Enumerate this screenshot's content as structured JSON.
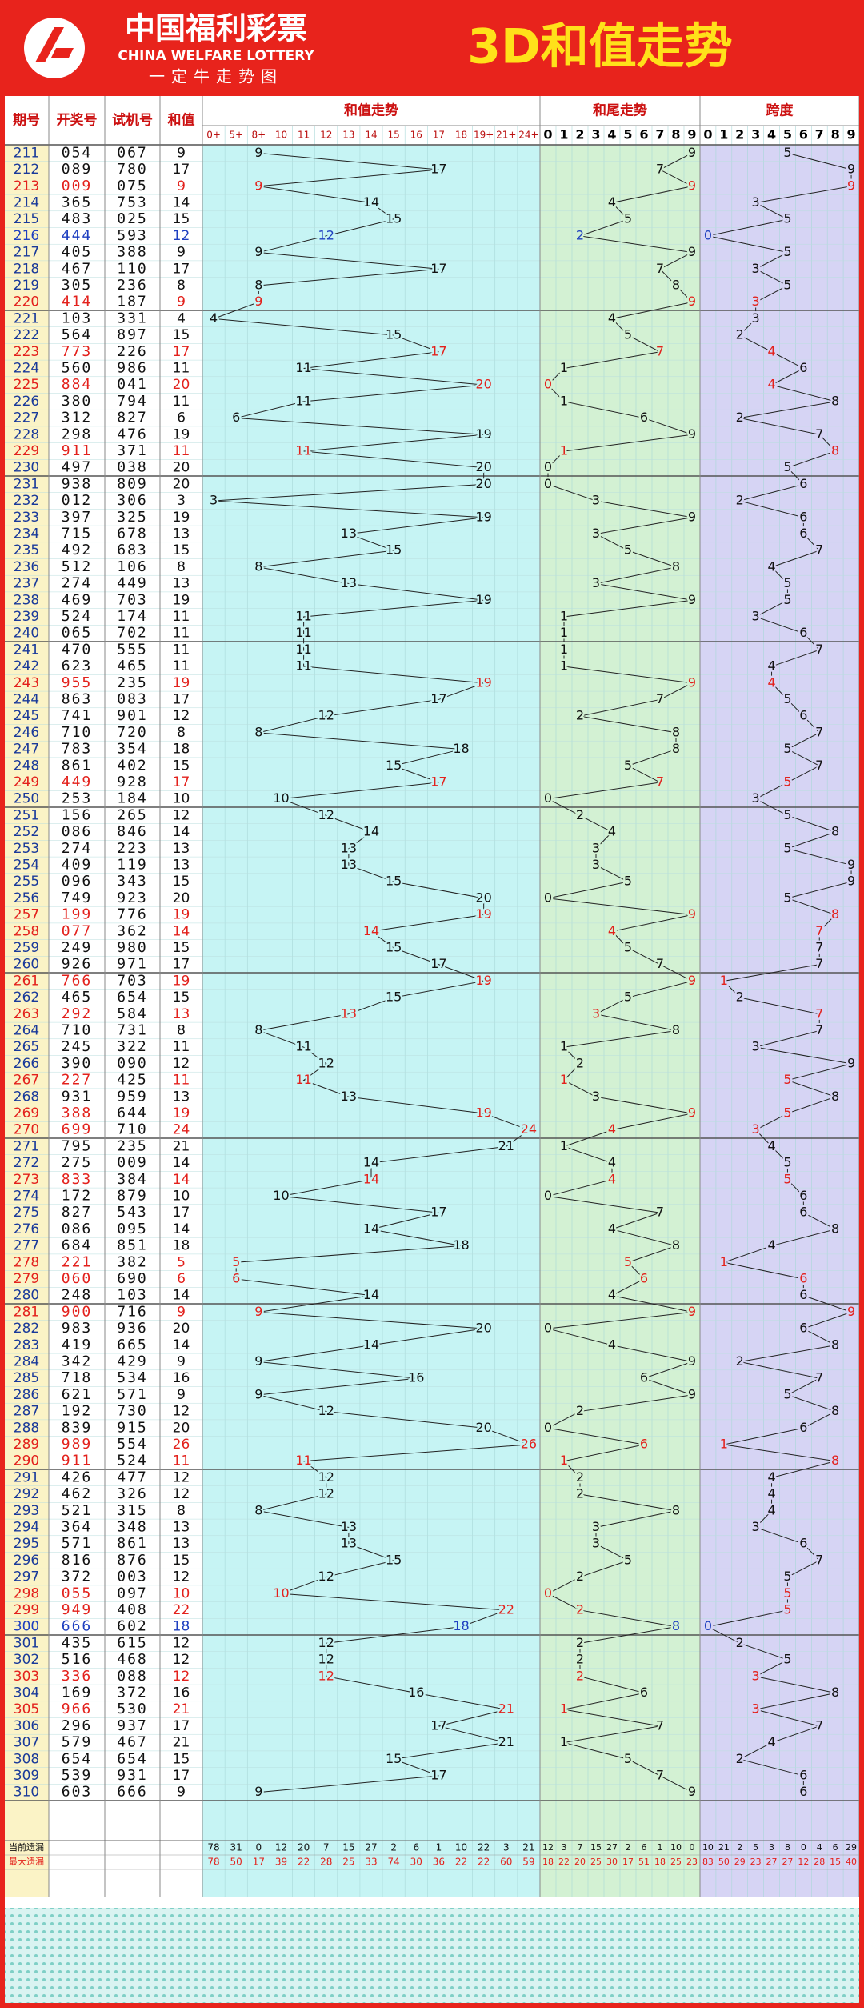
{
  "header": {
    "logo_cn": "中国福利彩票",
    "logo_en": "CHINA WELFARE LOTTERY",
    "slogan": "一定牛走势图",
    "title": "3D和值走势"
  },
  "columns": {
    "issue": "期号",
    "draw": "开奖号",
    "test": "试机号",
    "sum": "和值",
    "sum_trend": "和值走势",
    "tail_trend": "和尾走势",
    "span_trend": "跨度"
  },
  "sum_bins": [
    "0+",
    "5+",
    "8+",
    "10",
    "11",
    "12",
    "13",
    "14",
    "15",
    "16",
    "17",
    "18",
    "19+",
    "21+",
    "24+"
  ],
  "tail_bins": [
    0,
    1,
    2,
    3,
    4,
    5,
    6,
    7,
    8,
    9
  ],
  "span_bins": [
    0,
    1,
    2,
    3,
    4,
    5,
    6,
    7,
    8,
    9
  ],
  "rows": [
    {
      "issue": 211,
      "draw": "054",
      "test": "067",
      "sum": 9,
      "tail": 9,
      "span": 5
    },
    {
      "issue": 212,
      "draw": "089",
      "test": "780",
      "sum": 17,
      "tail": 7,
      "span": 9
    },
    {
      "issue": 213,
      "draw": "009",
      "test": "075",
      "sum": 9,
      "tail": 9,
      "span": 9,
      "color": "#e3211c"
    },
    {
      "issue": 214,
      "draw": "365",
      "test": "753",
      "sum": 14,
      "tail": 4,
      "span": 3
    },
    {
      "issue": 215,
      "draw": "483",
      "test": "025",
      "sum": 15,
      "tail": 5,
      "span": 5
    },
    {
      "issue": 216,
      "draw": "444",
      "test": "593",
      "sum": 12,
      "tail": 2,
      "span": 0,
      "color": "#1e3fc0"
    },
    {
      "issue": 217,
      "draw": "405",
      "test": "388",
      "sum": 9,
      "tail": 9,
      "span": 5
    },
    {
      "issue": 218,
      "draw": "467",
      "test": "110",
      "sum": 17,
      "tail": 7,
      "span": 3
    },
    {
      "issue": 219,
      "draw": "305",
      "test": "236",
      "sum": 8,
      "tail": 8,
      "span": 5
    },
    {
      "issue": 220,
      "draw": "414",
      "test": "187",
      "sum": 9,
      "tail": 9,
      "span": 3,
      "color": "#e3211c"
    },
    {
      "issue": 221,
      "draw": "103",
      "test": "331",
      "sum": 4,
      "tail": 4,
      "span": 3
    },
    {
      "issue": 222,
      "draw": "564",
      "test": "897",
      "sum": 15,
      "tail": 5,
      "span": 2
    },
    {
      "issue": 223,
      "draw": "773",
      "test": "226",
      "sum": 17,
      "tail": 7,
      "span": 4,
      "color": "#e3211c"
    },
    {
      "issue": 224,
      "draw": "560",
      "test": "986",
      "sum": 11,
      "tail": 1,
      "span": 6
    },
    {
      "issue": 225,
      "draw": "884",
      "test": "041",
      "sum": 20,
      "tail": 0,
      "span": 4,
      "color": "#e3211c"
    },
    {
      "issue": 226,
      "draw": "380",
      "test": "794",
      "sum": 11,
      "tail": 1,
      "span": 8
    },
    {
      "issue": 227,
      "draw": "312",
      "test": "827",
      "sum": 6,
      "tail": 6,
      "span": 2
    },
    {
      "issue": 228,
      "draw": "298",
      "test": "476",
      "sum": 19,
      "tail": 9,
      "span": 7
    },
    {
      "issue": 229,
      "draw": "911",
      "test": "371",
      "sum": 11,
      "tail": 1,
      "span": 8,
      "color": "#e3211c"
    },
    {
      "issue": 230,
      "draw": "497",
      "test": "038",
      "sum": 20,
      "tail": 0,
      "span": 5
    },
    {
      "issue": 231,
      "draw": "938",
      "test": "809",
      "sum": 20,
      "tail": 0,
      "span": 6
    },
    {
      "issue": 232,
      "draw": "012",
      "test": "306",
      "sum": 3,
      "tail": 3,
      "span": 2
    },
    {
      "issue": 233,
      "draw": "397",
      "test": "325",
      "sum": 19,
      "tail": 9,
      "span": 6
    },
    {
      "issue": 234,
      "draw": "715",
      "test": "678",
      "sum": 13,
      "tail": 3,
      "span": 6
    },
    {
      "issue": 235,
      "draw": "492",
      "test": "683",
      "sum": 15,
      "tail": 5,
      "span": 7
    },
    {
      "issue": 236,
      "draw": "512",
      "test": "106",
      "sum": 8,
      "tail": 8,
      "span": 4
    },
    {
      "issue": 237,
      "draw": "274",
      "test": "449",
      "sum": 13,
      "tail": 3,
      "span": 5
    },
    {
      "issue": 238,
      "draw": "469",
      "test": "703",
      "sum": 19,
      "tail": 9,
      "span": 5
    },
    {
      "issue": 239,
      "draw": "524",
      "test": "174",
      "sum": 11,
      "tail": 1,
      "span": 3
    },
    {
      "issue": 240,
      "draw": "065",
      "test": "702",
      "sum": 11,
      "tail": 1,
      "span": 6
    },
    {
      "issue": 241,
      "draw": "470",
      "test": "555",
      "sum": 11,
      "tail": 1,
      "span": 7
    },
    {
      "issue": 242,
      "draw": "623",
      "test": "465",
      "sum": 11,
      "tail": 1,
      "span": 4
    },
    {
      "issue": 243,
      "draw": "955",
      "test": "235",
      "sum": 19,
      "tail": 9,
      "span": 4,
      "color": "#e3211c"
    },
    {
      "issue": 244,
      "draw": "863",
      "test": "083",
      "sum": 17,
      "tail": 7,
      "span": 5
    },
    {
      "issue": 245,
      "draw": "741",
      "test": "901",
      "sum": 12,
      "tail": 2,
      "span": 6
    },
    {
      "issue": 246,
      "draw": "710",
      "test": "720",
      "sum": 8,
      "tail": 8,
      "span": 7
    },
    {
      "issue": 247,
      "draw": "783",
      "test": "354",
      "sum": 18,
      "tail": 8,
      "span": 5
    },
    {
      "issue": 248,
      "draw": "861",
      "test": "402",
      "sum": 15,
      "tail": 5,
      "span": 7
    },
    {
      "issue": 249,
      "draw": "449",
      "test": "928",
      "sum": 17,
      "tail": 7,
      "span": 5,
      "color": "#e3211c"
    },
    {
      "issue": 250,
      "draw": "253",
      "test": "184",
      "sum": 10,
      "tail": 0,
      "span": 3
    },
    {
      "issue": 251,
      "draw": "156",
      "test": "265",
      "sum": 12,
      "tail": 2,
      "span": 5
    },
    {
      "issue": 252,
      "draw": "086",
      "test": "846",
      "sum": 14,
      "tail": 4,
      "span": 8
    },
    {
      "issue": 253,
      "draw": "274",
      "test": "223",
      "sum": 13,
      "tail": 3,
      "span": 5
    },
    {
      "issue": 254,
      "draw": "409",
      "test": "119",
      "sum": 13,
      "tail": 3,
      "span": 9
    },
    {
      "issue": 255,
      "draw": "096",
      "test": "343",
      "sum": 15,
      "tail": 5,
      "span": 9
    },
    {
      "issue": 256,
      "draw": "749",
      "test": "923",
      "sum": 20,
      "tail": 0,
      "span": 5
    },
    {
      "issue": 257,
      "draw": "199",
      "test": "776",
      "sum": 19,
      "tail": 9,
      "span": 8,
      "color": "#e3211c"
    },
    {
      "issue": 258,
      "draw": "077",
      "test": "362",
      "sum": 14,
      "tail": 4,
      "span": 7,
      "color": "#e3211c"
    },
    {
      "issue": 259,
      "draw": "249",
      "test": "980",
      "sum": 15,
      "tail": 5,
      "span": 7
    },
    {
      "issue": 260,
      "draw": "926",
      "test": "971",
      "sum": 17,
      "tail": 7,
      "span": 7
    },
    {
      "issue": 261,
      "draw": "766",
      "test": "703",
      "sum": 19,
      "tail": 9,
      "span": 1,
      "color": "#e3211c"
    },
    {
      "issue": 262,
      "draw": "465",
      "test": "654",
      "sum": 15,
      "tail": 5,
      "span": 2
    },
    {
      "issue": 263,
      "draw": "292",
      "test": "584",
      "sum": 13,
      "tail": 3,
      "span": 7,
      "color": "#e3211c"
    },
    {
      "issue": 264,
      "draw": "710",
      "test": "731",
      "sum": 8,
      "tail": 8,
      "span": 7
    },
    {
      "issue": 265,
      "draw": "245",
      "test": "322",
      "sum": 11,
      "tail": 1,
      "span": 3
    },
    {
      "issue": 266,
      "draw": "390",
      "test": "090",
      "sum": 12,
      "tail": 2,
      "span": 9
    },
    {
      "issue": 267,
      "draw": "227",
      "test": "425",
      "sum": 11,
      "tail": 1,
      "span": 5,
      "color": "#e3211c"
    },
    {
      "issue": 268,
      "draw": "931",
      "test": "959",
      "sum": 13,
      "tail": 3,
      "span": 8
    },
    {
      "issue": 269,
      "draw": "388",
      "test": "644",
      "sum": 19,
      "tail": 9,
      "span": 5,
      "color": "#e3211c"
    },
    {
      "issue": 270,
      "draw": "699",
      "test": "710",
      "sum": 24,
      "tail": 4,
      "span": 3,
      "color": "#e3211c"
    },
    {
      "issue": 271,
      "draw": "795",
      "test": "235",
      "sum": 21,
      "tail": 1,
      "span": 4
    },
    {
      "issue": 272,
      "draw": "275",
      "test": "009",
      "sum": 14,
      "tail": 4,
      "span": 5
    },
    {
      "issue": 273,
      "draw": "833",
      "test": "384",
      "sum": 14,
      "tail": 4,
      "span": 5,
      "color": "#e3211c"
    },
    {
      "issue": 274,
      "draw": "172",
      "test": "879",
      "sum": 10,
      "tail": 0,
      "span": 6
    },
    {
      "issue": 275,
      "draw": "827",
      "test": "543",
      "sum": 17,
      "tail": 7,
      "span": 6
    },
    {
      "issue": 276,
      "draw": "086",
      "test": "095",
      "sum": 14,
      "tail": 4,
      "span": 8
    },
    {
      "issue": 277,
      "draw": "684",
      "test": "851",
      "sum": 18,
      "tail": 8,
      "span": 4
    },
    {
      "issue": 278,
      "draw": "221",
      "test": "382",
      "sum": 5,
      "tail": 5,
      "span": 1,
      "color": "#e3211c"
    },
    {
      "issue": 279,
      "draw": "060",
      "test": "690",
      "sum": 6,
      "tail": 6,
      "span": 6,
      "color": "#e3211c"
    },
    {
      "issue": 280,
      "draw": "248",
      "test": "103",
      "sum": 14,
      "tail": 4,
      "span": 6
    },
    {
      "issue": 281,
      "draw": "900",
      "test": "716",
      "sum": 9,
      "tail": 9,
      "span": 9,
      "color": "#e3211c"
    },
    {
      "issue": 282,
      "draw": "983",
      "test": "936",
      "sum": 20,
      "tail": 0,
      "span": 6
    },
    {
      "issue": 283,
      "draw": "419",
      "test": "665",
      "sum": 14,
      "tail": 4,
      "span": 8
    },
    {
      "issue": 284,
      "draw": "342",
      "test": "429",
      "sum": 9,
      "tail": 9,
      "span": 2
    },
    {
      "issue": 285,
      "draw": "718",
      "test": "534",
      "sum": 16,
      "tail": 6,
      "span": 7
    },
    {
      "issue": 286,
      "draw": "621",
      "test": "571",
      "sum": 9,
      "tail": 9,
      "span": 5
    },
    {
      "issue": 287,
      "draw": "192",
      "test": "730",
      "sum": 12,
      "tail": 2,
      "span": 8
    },
    {
      "issue": 288,
      "draw": "839",
      "test": "915",
      "sum": 20,
      "tail": 0,
      "span": 6
    },
    {
      "issue": 289,
      "draw": "989",
      "test": "554",
      "sum": 26,
      "tail": 6,
      "span": 1,
      "color": "#e3211c"
    },
    {
      "issue": 290,
      "draw": "911",
      "test": "524",
      "sum": 11,
      "tail": 1,
      "span": 8,
      "color": "#e3211c"
    },
    {
      "issue": 291,
      "draw": "426",
      "test": "477",
      "sum": 12,
      "tail": 2,
      "span": 4
    },
    {
      "issue": 292,
      "draw": "462",
      "test": "326",
      "sum": 12,
      "tail": 2,
      "span": 4
    },
    {
      "issue": 293,
      "draw": "521",
      "test": "315",
      "sum": 8,
      "tail": 8,
      "span": 4
    },
    {
      "issue": 294,
      "draw": "364",
      "test": "348",
      "sum": 13,
      "tail": 3,
      "span": 3
    },
    {
      "issue": 295,
      "draw": "571",
      "test": "861",
      "sum": 13,
      "tail": 3,
      "span": 6
    },
    {
      "issue": 296,
      "draw": "816",
      "test": "876",
      "sum": 15,
      "tail": 5,
      "span": 7
    },
    {
      "issue": 297,
      "draw": "372",
      "test": "003",
      "sum": 12,
      "tail": 2,
      "span": 5
    },
    {
      "issue": 298,
      "draw": "055",
      "test": "097",
      "sum": 10,
      "tail": 0,
      "span": 5,
      "color": "#e3211c"
    },
    {
      "issue": 299,
      "draw": "949",
      "test": "408",
      "sum": 22,
      "tail": 2,
      "span": 5,
      "color": "#e3211c"
    },
    {
      "issue": 300,
      "draw": "666",
      "test": "602",
      "sum": 18,
      "tail": 8,
      "span": 0,
      "color": "#1e3fc0"
    },
    {
      "issue": 301,
      "draw": "435",
      "test": "615",
      "sum": 12,
      "tail": 2,
      "span": 2
    },
    {
      "issue": 302,
      "draw": "516",
      "test": "468",
      "sum": 12,
      "tail": 2,
      "span": 5
    },
    {
      "issue": 303,
      "draw": "336",
      "test": "088",
      "sum": 12,
      "tail": 2,
      "span": 3,
      "color": "#e3211c"
    },
    {
      "issue": 304,
      "draw": "169",
      "test": "372",
      "sum": 16,
      "tail": 6,
      "span": 8
    },
    {
      "issue": 305,
      "draw": "966",
      "test": "530",
      "sum": 21,
      "tail": 1,
      "span": 3,
      "color": "#e3211c"
    },
    {
      "issue": 306,
      "draw": "296",
      "test": "937",
      "sum": 17,
      "tail": 7,
      "span": 7
    },
    {
      "issue": 307,
      "draw": "579",
      "test": "467",
      "sum": 21,
      "tail": 1,
      "span": 4
    },
    {
      "issue": 308,
      "draw": "654",
      "test": "654",
      "sum": 15,
      "tail": 5,
      "span": 2
    },
    {
      "issue": 309,
      "draw": "539",
      "test": "931",
      "sum": 17,
      "tail": 7,
      "span": 6
    },
    {
      "issue": 310,
      "draw": "603",
      "test": "666",
      "sum": 9,
      "tail": 9,
      "span": 6
    }
  ],
  "stats": [
    {
      "label": "当前遗漏",
      "sum": [
        78,
        31,
        0,
        12,
        20,
        7,
        15,
        27,
        2,
        6,
        1,
        10,
        22,
        3,
        21
      ],
      "tail": [
        12,
        3,
        7,
        15,
        27,
        2,
        6,
        1,
        10,
        0
      ],
      "span": [
        10,
        21,
        2,
        5,
        3,
        8,
        0,
        4,
        6,
        29
      ]
    },
    {
      "label": "最大遗漏",
      "color": "#e3211c",
      "sum": [
        78,
        50,
        17,
        39,
        22,
        28,
        25,
        33,
        74,
        30,
        36,
        22,
        22,
        60,
        59
      ],
      "tail": [
        18,
        22,
        20,
        25,
        30,
        17,
        51,
        18,
        25,
        23
      ],
      "span": [
        83,
        50,
        29,
        23,
        27,
        27,
        12,
        28,
        15,
        40
      ]
    }
  ]
}
